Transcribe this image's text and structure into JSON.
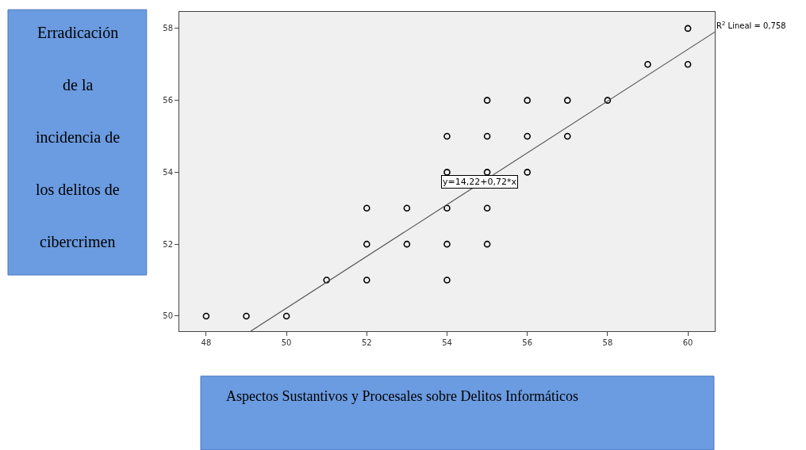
{
  "chart_data": {
    "type": "scatter",
    "xlabel": "Aspectos Sustantivos y Procesales sobre Delitos Informáticos",
    "ylabel": "Erradicación\nde la\nincidencia de\nlos delitos de\ncibercrimen",
    "series": [
      {
        "color": "#000000",
        "marker": "circle",
        "x": [
          48,
          49,
          50,
          51,
          52,
          52,
          52,
          53,
          53,
          54,
          54,
          54,
          54,
          54,
          55,
          55,
          55,
          55,
          55,
          56,
          56,
          56,
          57,
          57,
          58,
          59,
          60,
          60
        ],
        "values": [
          50,
          50,
          50,
          51,
          51,
          52,
          53,
          52,
          53,
          51,
          52,
          53,
          54,
          55,
          52,
          53,
          54,
          55,
          56,
          54,
          55,
          56,
          55,
          56,
          56,
          57,
          57,
          58
        ]
      },
      {
        "type": "line",
        "color": "#555555",
        "line_style": "solid",
        "x": [
          49.11,
          60.67
        ],
        "values": [
          49.58,
          57.9
        ]
      }
    ],
    "annotations": [
      "R$^{2}$ Lineal = 0,758",
      {
        "text": "y=14,22+0,72*x",
        "x": 54.82,
        "y": 53.73
      }
    ],
    "xlim": [
      47.33,
      60.67
    ],
    "ylim": [
      49.58,
      58.46
    ],
    "xticks": [
      48,
      50,
      52,
      54,
      56,
      58,
      60
    ],
    "yticks": [
      50,
      52,
      54,
      56,
      58
    ],
    "grid": false
  }
}
